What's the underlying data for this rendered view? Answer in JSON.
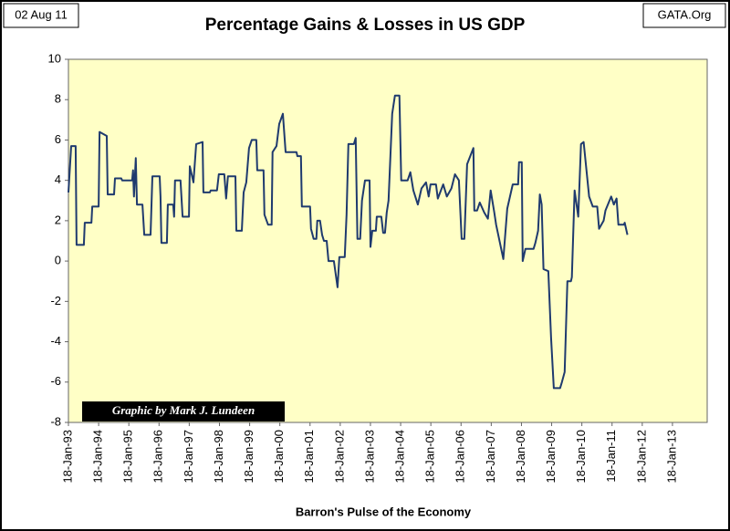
{
  "chart_data": {
    "type": "line",
    "title": "Percentage Gains & Losses in US GDP",
    "date": "02 Aug 11",
    "source": "GATA.Org",
    "annotation": "Graphic by Mark J. Lundeen",
    "x_label": "Barron's Pulse of the Economy",
    "color": "#1f3a6e",
    "plot_background": "#ffffc6",
    "x": [
      1993.05,
      1993.14,
      1993.29,
      1993.32,
      1993.56,
      1993.59,
      1993.81,
      1993.84,
      1994.05,
      1994.08,
      1994.32,
      1994.35,
      1994.56,
      1994.59,
      1994.8,
      1994.83,
      1995.16,
      1995.19,
      1995.22,
      1995.28,
      1995.32,
      1995.5,
      1995.56,
      1995.77,
      1995.83,
      1996.07,
      1996.1,
      1996.13,
      1996.31,
      1996.34,
      1996.52,
      1996.55,
      1996.58,
      1996.76,
      1996.83,
      1997.04,
      1997.07,
      1997.19,
      1997.28,
      1997.49,
      1997.52,
      1997.73,
      1997.76,
      1997.97,
      1998.03,
      1998.21,
      1998.27,
      1998.33,
      1998.58,
      1998.61,
      1998.79,
      1998.85,
      1998.94,
      1999.03,
      1999.12,
      1999.27,
      1999.3,
      1999.51,
      1999.54,
      1999.66,
      1999.78,
      1999.81,
      1999.94,
      2000.03,
      2000.15,
      2000.24,
      2000.6,
      2000.63,
      2000.75,
      2000.78,
      2001.05,
      2001.08,
      2001.17,
      2001.26,
      2001.29,
      2001.38,
      2001.45,
      2001.51,
      2001.6,
      2001.66,
      2001.84,
      2001.96,
      2002.02,
      2002.2,
      2002.26,
      2002.32,
      2002.5,
      2002.56,
      2002.62,
      2002.71,
      2002.77,
      2002.87,
      2003.02,
      2003.05,
      2003.11,
      2003.23,
      2003.26,
      2003.41,
      2003.47,
      2003.53,
      2003.59,
      2003.65,
      2003.77,
      2003.86,
      2004.01,
      2004.07,
      2004.28,
      2004.37,
      2004.47,
      2004.62,
      2004.74,
      2004.89,
      2004.98,
      2005.04,
      2005.22,
      2005.28,
      2005.46,
      2005.58,
      2005.73,
      2005.85,
      2005.98,
      2006.07,
      2006.16,
      2006.25,
      2006.46,
      2006.49,
      2006.58,
      2006.67,
      2006.82,
      2006.94,
      2007.03,
      2007.15,
      2007.21,
      2007.45,
      2007.58,
      2007.76,
      2007.94,
      2007.97,
      2008.06,
      2008.09,
      2008.18,
      2008.45,
      2008.51,
      2008.6,
      2008.66,
      2008.72,
      2008.78,
      2008.94,
      2009.03,
      2009.12,
      2009.33,
      2009.39,
      2009.48,
      2009.57,
      2009.69,
      2009.72,
      2009.81,
      2009.93,
      2010.02,
      2010.11,
      2010.29,
      2010.41,
      2010.56,
      2010.62,
      2010.77,
      2010.83,
      2011.02,
      2011.11,
      2011.2,
      2011.26,
      2011.44,
      2011.47,
      2011.56
    ],
    "values": [
      3.4,
      5.7,
      5.7,
      0.8,
      0.8,
      1.9,
      1.9,
      2.7,
      2.7,
      6.4,
      6.2,
      3.3,
      3.3,
      4.1,
      4.1,
      4.0,
      4.0,
      4.5,
      3.2,
      5.1,
      2.8,
      2.8,
      1.3,
      1.3,
      4.2,
      4.2,
      3.2,
      0.9,
      0.9,
      2.8,
      2.8,
      2.2,
      4.0,
      4.0,
      2.2,
      2.2,
      4.7,
      3.9,
      5.8,
      5.9,
      3.4,
      3.4,
      3.5,
      3.5,
      4.3,
      4.3,
      3.1,
      4.2,
      4.2,
      1.5,
      1.5,
      3.4,
      3.9,
      5.6,
      6.0,
      6.0,
      4.5,
      4.5,
      2.3,
      1.8,
      1.8,
      5.4,
      5.7,
      6.8,
      7.3,
      5.4,
      5.4,
      5.2,
      5.2,
      2.7,
      2.7,
      1.6,
      1.1,
      1.1,
      2.0,
      2.0,
      1.3,
      1.0,
      1.0,
      0.0,
      0.0,
      -1.3,
      0.2,
      0.2,
      2.3,
      5.8,
      5.8,
      6.1,
      1.1,
      1.1,
      3.0,
      4.0,
      4.0,
      0.7,
      1.5,
      1.5,
      2.2,
      2.2,
      1.4,
      1.4,
      2.4,
      3.0,
      7.3,
      8.2,
      8.2,
      4.0,
      4.0,
      4.4,
      3.5,
      2.8,
      3.6,
      3.9,
      3.2,
      3.8,
      3.8,
      3.1,
      3.8,
      3.2,
      3.6,
      4.3,
      4.0,
      1.1,
      1.1,
      4.8,
      5.6,
      2.5,
      2.5,
      2.9,
      2.4,
      2.1,
      3.5,
      2.4,
      1.8,
      0.1,
      2.6,
      3.8,
      3.8,
      4.9,
      4.9,
      0.0,
      0.6,
      0.6,
      0.9,
      1.5,
      3.3,
      2.8,
      -0.4,
      -0.5,
      -3.8,
      -6.3,
      -6.3,
      -6.0,
      -5.5,
      -1.0,
      -1.0,
      -0.8,
      3.5,
      2.2,
      5.8,
      5.9,
      3.2,
      2.7,
      2.7,
      1.6,
      2.0,
      2.5,
      3.2,
      2.8,
      3.1,
      1.8,
      1.8,
      1.9,
      1.3
    ],
    "xlim": [
      1993.05,
      2014.2
    ],
    "xticks": [
      {
        "value": 1993.05,
        "label": "18-Jan-93"
      },
      {
        "value": 1994.05,
        "label": "18-Jan-94"
      },
      {
        "value": 1995.05,
        "label": "18-Jan-95"
      },
      {
        "value": 1996.05,
        "label": "18-Jan-96"
      },
      {
        "value": 1997.05,
        "label": "18-Jan-97"
      },
      {
        "value": 1998.05,
        "label": "18-Jan-98"
      },
      {
        "value": 1999.05,
        "label": "18-Jan-99"
      },
      {
        "value": 2000.05,
        "label": "18-Jan-00"
      },
      {
        "value": 2001.05,
        "label": "18-Jan-01"
      },
      {
        "value": 2002.05,
        "label": "18-Jan-02"
      },
      {
        "value": 2003.05,
        "label": "18-Jan-03"
      },
      {
        "value": 2004.05,
        "label": "18-Jan-04"
      },
      {
        "value": 2005.05,
        "label": "18-Jan-05"
      },
      {
        "value": 2006.05,
        "label": "18-Jan-06"
      },
      {
        "value": 2007.05,
        "label": "18-Jan-07"
      },
      {
        "value": 2008.05,
        "label": "18-Jan-08"
      },
      {
        "value": 2009.05,
        "label": "18-Jan-09"
      },
      {
        "value": 2010.05,
        "label": "18-Jan-10"
      },
      {
        "value": 2011.05,
        "label": "18-Jan-11"
      },
      {
        "value": 2012.05,
        "label": "18-Jan-12"
      },
      {
        "value": 2013.05,
        "label": "18-Jan-13"
      }
    ],
    "ylim": [
      -8,
      10
    ],
    "yticks": [
      -8,
      -6,
      -4,
      -2,
      0,
      2,
      4,
      6,
      8,
      10
    ],
    "grid": false
  }
}
